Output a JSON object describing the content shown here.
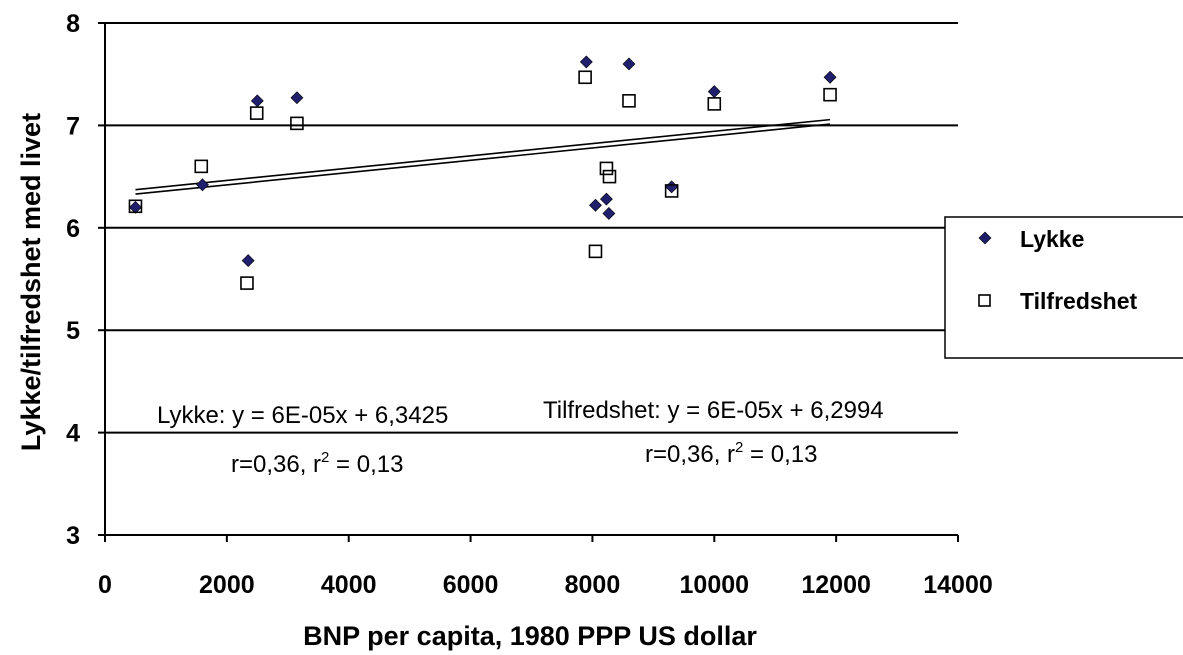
{
  "chart_data": {
    "type": "scatter",
    "title": "",
    "xlabel": "BNP per capita, 1980 PPP US dollar",
    "ylabel": "Lykke/tilfredshet med livet",
    "xlim": [
      0,
      14000
    ],
    "ylim": [
      3,
      8
    ],
    "xticks": [
      "0",
      "2000",
      "4000",
      "6000",
      "8000",
      "10000",
      "12000",
      "14000"
    ],
    "yticks": [
      "3",
      "4",
      "5",
      "6",
      "7",
      "8"
    ],
    "grid": "horizontal",
    "legend_position": "right",
    "series": [
      {
        "name": "Lykke",
        "marker": "diamond-filled",
        "color": "#1f1f6e",
        "points": [
          {
            "x": 500,
            "y": 6.2
          },
          {
            "x": 1600,
            "y": 6.42
          },
          {
            "x": 2350,
            "y": 5.68
          },
          {
            "x": 2500,
            "y": 7.24
          },
          {
            "x": 3150,
            "y": 7.27
          },
          {
            "x": 7900,
            "y": 7.62
          },
          {
            "x": 8050,
            "y": 6.22
          },
          {
            "x": 8230,
            "y": 6.28
          },
          {
            "x": 8270,
            "y": 6.14
          },
          {
            "x": 8600,
            "y": 7.6
          },
          {
            "x": 9300,
            "y": 6.4
          },
          {
            "x": 10000,
            "y": 7.33
          },
          {
            "x": 11900,
            "y": 7.47
          }
        ],
        "trend": {
          "slope": 6e-05,
          "intercept": 6.3425
        }
      },
      {
        "name": "Tilfredshet",
        "marker": "square-open",
        "color": "#000000",
        "points": [
          {
            "x": 500,
            "y": 6.21
          },
          {
            "x": 1580,
            "y": 6.6
          },
          {
            "x": 2330,
            "y": 5.46
          },
          {
            "x": 2490,
            "y": 7.12
          },
          {
            "x": 3150,
            "y": 7.02
          },
          {
            "x": 7880,
            "y": 7.47
          },
          {
            "x": 8050,
            "y": 5.77
          },
          {
            "x": 8230,
            "y": 6.58
          },
          {
            "x": 8280,
            "y": 6.5
          },
          {
            "x": 8600,
            "y": 7.24
          },
          {
            "x": 9300,
            "y": 6.36
          },
          {
            "x": 10000,
            "y": 7.21
          },
          {
            "x": 11900,
            "y": 7.3
          }
        ],
        "trend": {
          "slope": 6e-05,
          "intercept": 6.2994
        }
      }
    ],
    "annotations": {
      "lykke_equation": "Lykke: y = 6E-05x + 6,3425",
      "lykke_r": "r=0,36, r",
      "lykke_r2": " = 0,13",
      "tilfredshet_equation": "Tilfredshet: y = 6E-05x + 6,2994",
      "tilfredshet_r": "r=0,36, r",
      "tilfredshet_r2": " = 0,13",
      "superscript": "2"
    },
    "legend_items": [
      "Lykke",
      "Tilfredshet"
    ]
  }
}
